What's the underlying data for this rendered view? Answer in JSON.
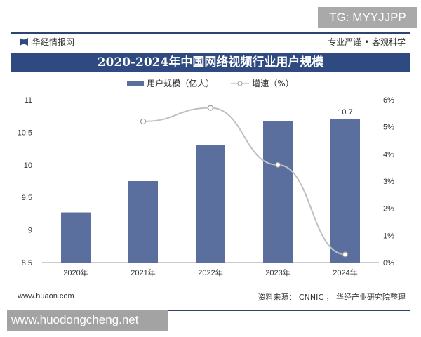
{
  "overlay": {
    "tg": "TG: MYYJJPP",
    "watermark": "www.huodongcheng.net"
  },
  "header": {
    "brand": "华经情报网",
    "slogan": "专业严谨 • 客观科学"
  },
  "footer": {
    "site": "www.huaon.com",
    "source": "资料来源： CNNIC ， 华经产业研究院整理"
  },
  "colors": {
    "bar": "#5a6f9e",
    "line": "#c0c0c0",
    "title_bg": "#2e4a80"
  },
  "chart_data": {
    "type": "bar+line",
    "title": "2020-2024年中国网络视频行业用户规模",
    "categories": [
      "2020年",
      "2021年",
      "2022年",
      "2023年",
      "2024年"
    ],
    "series": [
      {
        "name": "用户规模（亿人）",
        "type": "bar",
        "axis": "left",
        "values": [
          9.27,
          9.75,
          10.31,
          10.67,
          10.7
        ]
      },
      {
        "name": "增速（%）",
        "type": "line",
        "axis": "right",
        "values": [
          null,
          5.2,
          5.7,
          3.6,
          0.3
        ]
      }
    ],
    "data_labels": {
      "2024年": "10.7"
    },
    "left_axis": {
      "ylim": [
        8.5,
        11
      ],
      "ticks": [
        "8.5",
        "9",
        "9.5",
        "10",
        "10.5",
        "11"
      ]
    },
    "right_axis": {
      "ylim": [
        0,
        6
      ],
      "ticks": [
        "0%",
        "1%",
        "2%",
        "3%",
        "4%",
        "5%",
        "6%"
      ]
    },
    "grid": false,
    "legend": "top"
  }
}
